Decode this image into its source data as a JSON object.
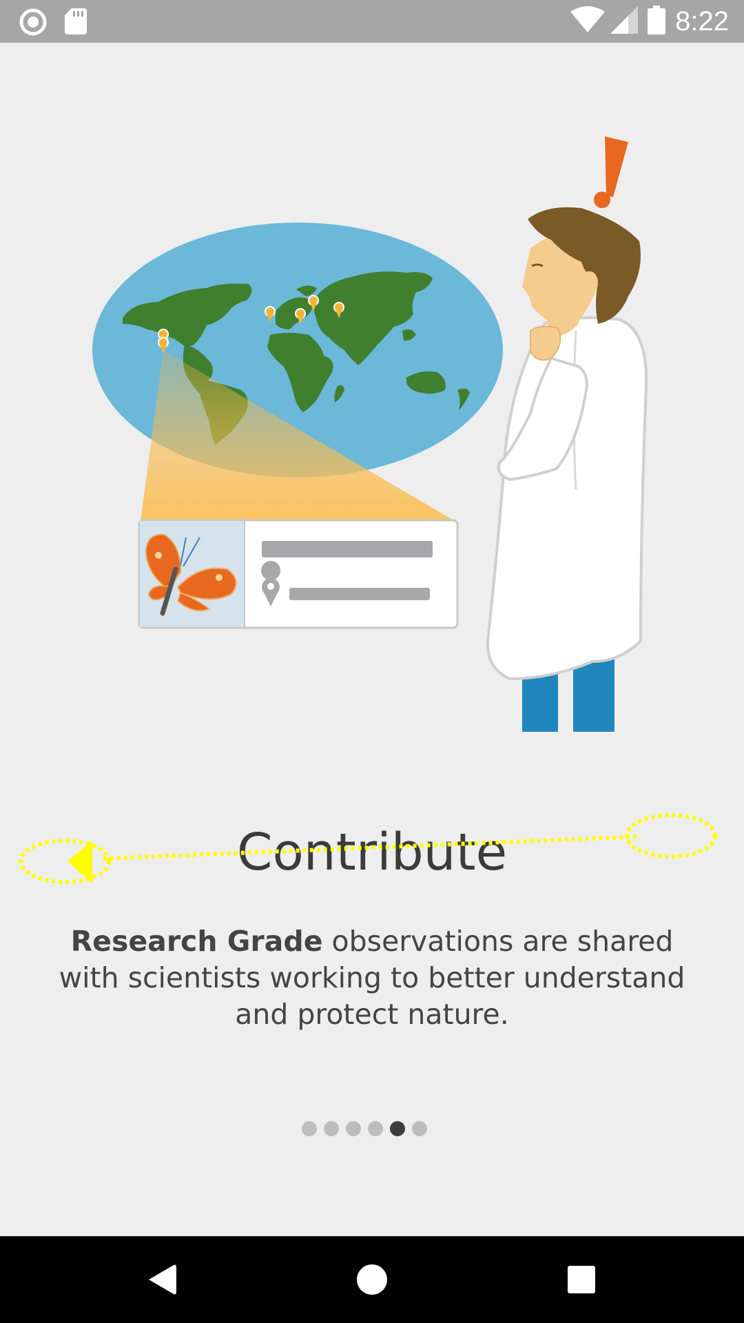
{
  "status_bar": {
    "time": "8:22",
    "icons": [
      "record-icon",
      "sd-card-icon",
      "wifi-icon",
      "signal-icon",
      "battery-icon"
    ]
  },
  "onboarding": {
    "title": "Contribute",
    "body_bold": "Research Grade",
    "body_rest": " observations are shared with scientists working to better understand and protect nature.",
    "page_count": 6,
    "current_page": 5
  },
  "navigation": {
    "back_icon": "back-triangle-icon",
    "home_icon": "home-circle-icon",
    "recents_icon": "recents-square-icon"
  },
  "colors": {
    "background": "#eeeeee",
    "status_bar": "#a6a6a6",
    "ocean": "#6bb8d9",
    "land": "#3f7f2e",
    "butterfly": "#e8681f",
    "accent_exclamation": "#e8681f",
    "gesture": "#ffff00"
  }
}
